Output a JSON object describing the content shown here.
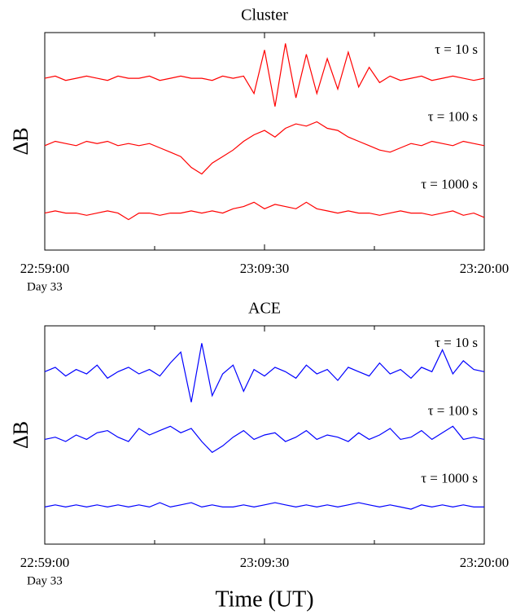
{
  "chart_data": [
    {
      "type": "line",
      "title": "Cluster",
      "ylabel": "ΔB",
      "x": [
        "22:59:00",
        "22:59:30",
        "23:00:00",
        "23:00:30",
        "23:01:00",
        "23:01:30",
        "23:02:00",
        "23:02:30",
        "23:03:00",
        "23:03:30",
        "23:04:00",
        "23:04:30",
        "23:05:00",
        "23:05:30",
        "23:06:00",
        "23:06:30",
        "23:07:00",
        "23:07:30",
        "23:08:00",
        "23:08:30",
        "23:09:00",
        "23:09:30",
        "23:10:00",
        "23:10:30",
        "23:11:00",
        "23:11:30",
        "23:12:00",
        "23:12:30",
        "23:13:00",
        "23:13:30",
        "23:14:00",
        "23:14:30",
        "23:15:00",
        "23:15:30",
        "23:16:00",
        "23:16:30",
        "23:17:00",
        "23:17:30",
        "23:18:00",
        "23:18:30",
        "23:19:00",
        "23:19:30",
        "23:20:00"
      ],
      "xlim": [
        "22:59:00",
        "23:20:00"
      ],
      "xticks": [
        "22:59:00",
        "23:09:30",
        "23:20:00"
      ],
      "xminor_ticks": [
        "23:04:15",
        "23:14:45"
      ],
      "x_sublabel": "Day 33",
      "ylim": [
        0,
        100
      ],
      "series": [
        {
          "name": "τ = 10 s",
          "color": "#ff0000",
          "values": [
            79,
            80,
            78,
            79,
            80,
            79,
            78,
            80,
            79,
            79,
            80,
            78,
            79,
            80,
            79,
            79,
            78,
            80,
            79,
            80,
            72,
            92,
            66,
            95,
            70,
            90,
            72,
            88,
            74,
            91,
            75,
            84,
            77,
            80,
            78,
            79,
            80,
            78,
            79,
            80,
            79,
            78,
            79
          ]
        },
        {
          "name": "τ = 100 s",
          "color": "#ff0000",
          "values": [
            48,
            50,
            49,
            48,
            50,
            49,
            50,
            48,
            49,
            48,
            49,
            47,
            45,
            43,
            38,
            35,
            40,
            43,
            46,
            50,
            53,
            55,
            52,
            56,
            58,
            57,
            59,
            56,
            55,
            52,
            50,
            48,
            46,
            45,
            47,
            49,
            48,
            50,
            49,
            48,
            50,
            49,
            48
          ]
        },
        {
          "name": "τ = 1000 s",
          "color": "#ff0000",
          "values": [
            17,
            18,
            17,
            17,
            16,
            17,
            18,
            17,
            14,
            17,
            17,
            16,
            17,
            17,
            18,
            17,
            18,
            17,
            19,
            20,
            22,
            19,
            21,
            20,
            19,
            22,
            19,
            18,
            17,
            18,
            17,
            17,
            16,
            17,
            18,
            17,
            17,
            16,
            17,
            18,
            16,
            17,
            15
          ]
        }
      ]
    },
    {
      "type": "line",
      "title": "ACE",
      "ylabel": "ΔB",
      "xlabel": "Time (UT)",
      "x": [
        "22:59:00",
        "22:59:30",
        "23:00:00",
        "23:00:30",
        "23:01:00",
        "23:01:30",
        "23:02:00",
        "23:02:30",
        "23:03:00",
        "23:03:30",
        "23:04:00",
        "23:04:30",
        "23:05:00",
        "23:05:30",
        "23:06:00",
        "23:06:30",
        "23:07:00",
        "23:07:30",
        "23:08:00",
        "23:08:30",
        "23:09:00",
        "23:09:30",
        "23:10:00",
        "23:10:30",
        "23:11:00",
        "23:11:30",
        "23:12:00",
        "23:12:30",
        "23:13:00",
        "23:13:30",
        "23:14:00",
        "23:14:30",
        "23:15:00",
        "23:15:30",
        "23:16:00",
        "23:16:30",
        "23:17:00",
        "23:17:30",
        "23:18:00",
        "23:18:30",
        "23:19:00",
        "23:19:30",
        "23:20:00"
      ],
      "xlim": [
        "22:59:00",
        "23:20:00"
      ],
      "xticks": [
        "22:59:00",
        "23:09:30",
        "23:20:00"
      ],
      "xminor_ticks": [
        "23:04:15",
        "23:14:45"
      ],
      "x_sublabel": "Day 33",
      "ylim": [
        0,
        100
      ],
      "series": [
        {
          "name": "τ = 10 s",
          "color": "#0000ff",
          "values": [
            79,
            81,
            77,
            80,
            78,
            82,
            76,
            79,
            81,
            78,
            80,
            77,
            83,
            88,
            65,
            92,
            68,
            78,
            82,
            70,
            80,
            77,
            81,
            79,
            76,
            82,
            78,
            80,
            75,
            81,
            79,
            77,
            83,
            78,
            80,
            76,
            81,
            79,
            89,
            78,
            84,
            80,
            79
          ]
        },
        {
          "name": "τ = 100 s",
          "color": "#0000ff",
          "values": [
            48,
            49,
            47,
            50,
            48,
            51,
            52,
            49,
            47,
            53,
            50,
            52,
            54,
            51,
            53,
            47,
            42,
            45,
            49,
            52,
            48,
            50,
            51,
            47,
            49,
            52,
            48,
            50,
            49,
            47,
            51,
            48,
            50,
            53,
            48,
            49,
            52,
            48,
            51,
            54,
            48,
            49,
            48
          ]
        },
        {
          "name": "τ = 1000 s",
          "color": "#0000ff",
          "values": [
            17,
            18,
            17,
            18,
            17,
            18,
            17,
            18,
            17,
            18,
            17,
            19,
            17,
            18,
            19,
            17,
            18,
            17,
            17,
            18,
            17,
            18,
            19,
            18,
            17,
            18,
            17,
            18,
            17,
            18,
            19,
            18,
            17,
            18,
            17,
            16,
            18,
            17,
            18,
            17,
            18,
            17,
            17
          ]
        }
      ]
    }
  ]
}
